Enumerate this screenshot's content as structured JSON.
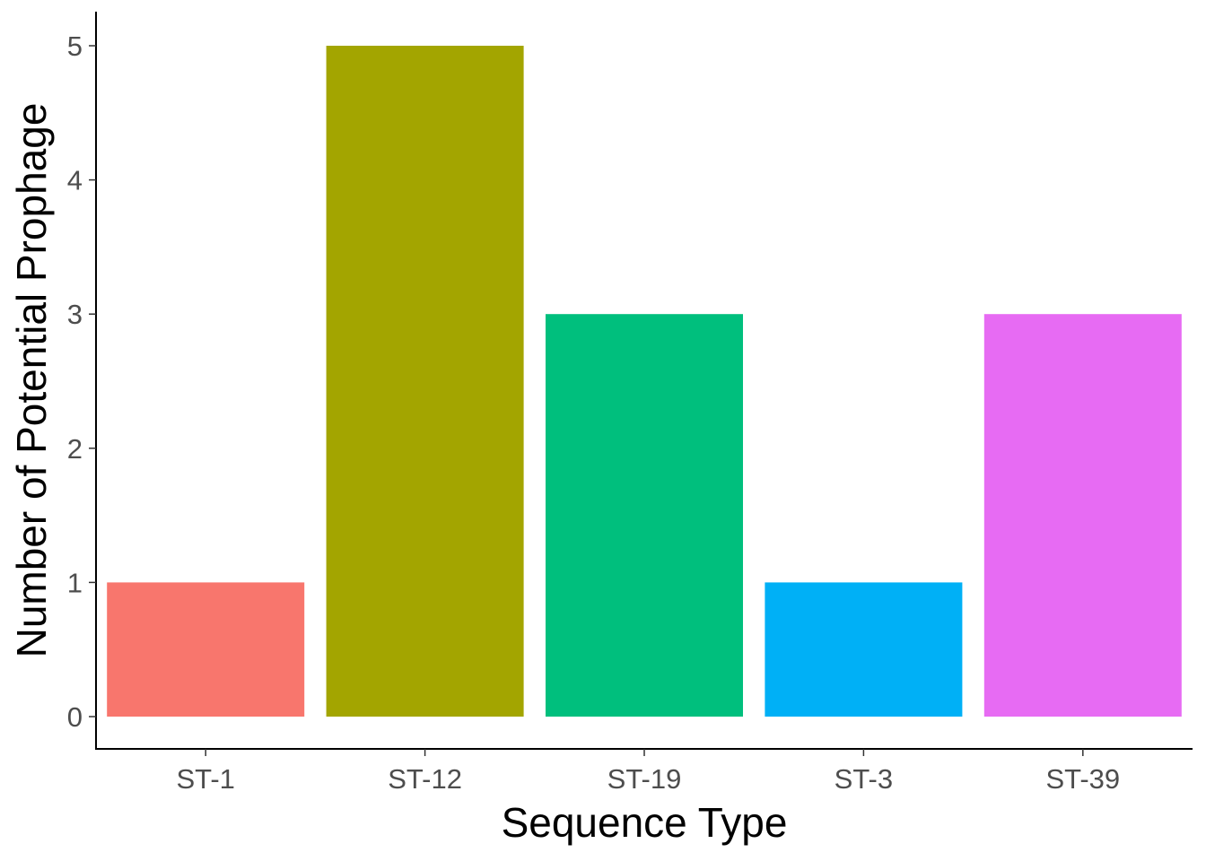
{
  "chart_data": {
    "type": "bar",
    "xlabel": "Sequence Type",
    "ylabel": "Number of Potential Prophage",
    "categories": [
      "ST-1",
      "ST-12",
      "ST-19",
      "ST-3",
      "ST-39"
    ],
    "values": [
      1,
      5,
      3,
      1,
      3
    ],
    "colors": [
      "#F8766D",
      "#A3A500",
      "#00BF7D",
      "#00B0F6",
      "#E76BF3"
    ],
    "yticks": [
      0,
      1,
      2,
      3,
      4,
      5
    ],
    "ylim": [
      -0.24,
      5.25
    ],
    "grid": false,
    "legend": "none"
  }
}
